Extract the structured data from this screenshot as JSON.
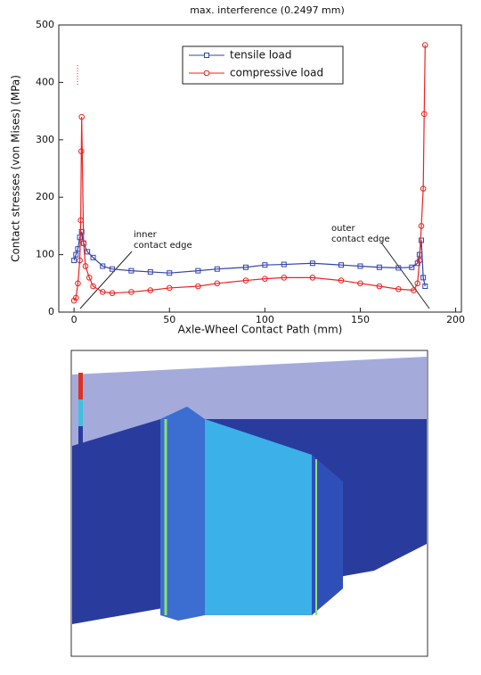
{
  "chart_data": {
    "type": "line",
    "title": "max. interference (0.2497 mm)",
    "x_label": "Axle-Wheel Contact Path (mm)",
    "y_label": "Contact stresses (von Mises) (MPa)",
    "xlim": [
      -8,
      203
    ],
    "xticks": [
      0,
      50,
      100,
      150,
      200
    ],
    "ylim": [
      0,
      500
    ],
    "yticks": [
      0,
      100,
      200,
      300,
      400,
      500
    ],
    "series": [
      {
        "name": "tensile load",
        "color": "#3344aa",
        "marker": "square",
        "x": [
          0,
          1,
          2,
          3,
          4,
          5,
          7,
          10,
          15,
          20,
          30,
          40,
          50,
          65,
          75,
          90,
          100,
          110,
          125,
          140,
          150,
          160,
          170,
          177,
          180,
          181,
          182,
          183,
          184
        ],
        "values": [
          90,
          100,
          110,
          130,
          140,
          120,
          105,
          95,
          80,
          75,
          72,
          70,
          68,
          72,
          75,
          78,
          82,
          83,
          85,
          82,
          80,
          78,
          77,
          78,
          85,
          100,
          125,
          60,
          45
        ]
      },
      {
        "name": "compressive load",
        "color": "#ee2222",
        "marker": "circle",
        "x": [
          0,
          1,
          2,
          3,
          3.5,
          3.8,
          4,
          5,
          6,
          8,
          10,
          15,
          20,
          30,
          40,
          50,
          65,
          75,
          90,
          100,
          110,
          125,
          140,
          150,
          160,
          170,
          178,
          180,
          181,
          182,
          183,
          183.5,
          184
        ],
        "values": [
          20,
          25,
          50,
          90,
          160,
          280,
          340,
          120,
          80,
          60,
          45,
          35,
          33,
          35,
          38,
          42,
          45,
          50,
          55,
          58,
          60,
          60,
          55,
          50,
          45,
          40,
          38,
          50,
          90,
          150,
          215,
          345,
          465
        ]
      }
    ],
    "legend": "top",
    "annotations": [
      {
        "lines": [
          "inner",
          "contact edge"
        ]
      },
      {
        "lines": [
          "outer",
          "contact edge"
        ]
      }
    ]
  }
}
